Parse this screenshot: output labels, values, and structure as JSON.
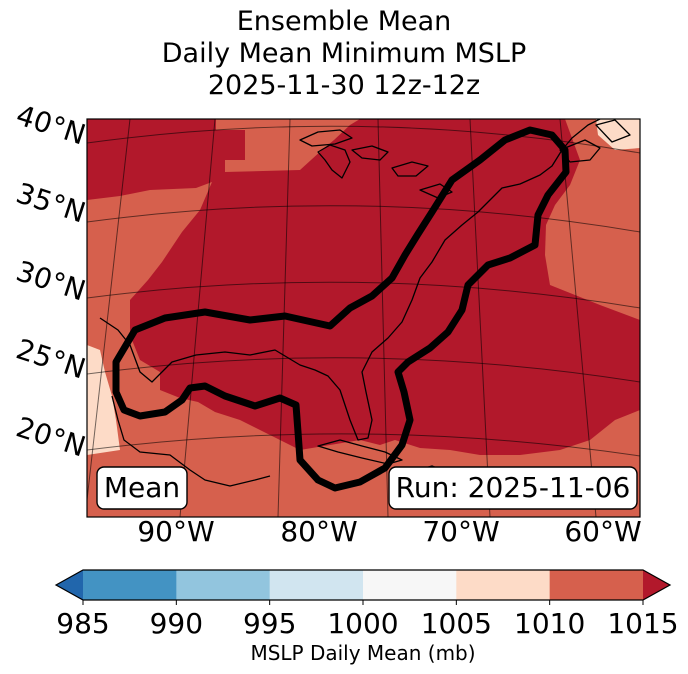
{
  "title": {
    "line1": "Ensemble Mean",
    "line2": "Daily Mean Minimum MSLP",
    "line3": "2025-11-30 12z-12z"
  },
  "map": {
    "lat_labels": [
      "40°N",
      "35°N",
      "30°N",
      "25°N",
      "20°N"
    ],
    "lon_labels": [
      "90°W",
      "80°W",
      "70°W",
      "60°W"
    ],
    "left_box": "Mean",
    "right_box": "Run: 2025-11-06",
    "fill_colors": {
      "band_1005_1010": "#fddbc7",
      "band_1010_1015": "#d6604d",
      "band_above_1015": "#b2182b"
    },
    "contour_color": "#000000"
  },
  "colorbar": {
    "label": "MSLP Daily Mean (mb)",
    "ticks": [
      "985",
      "990",
      "995",
      "1000",
      "1005",
      "1010",
      "1015"
    ],
    "segments": [
      {
        "range": "<985",
        "color": "#2166ac"
      },
      {
        "range": "985-990",
        "color": "#4393c3"
      },
      {
        "range": "990-995",
        "color": "#92c5de"
      },
      {
        "range": "995-1000",
        "color": "#d1e5f0"
      },
      {
        "range": "1000-1005",
        "color": "#f7f7f7"
      },
      {
        "range": "1005-1010",
        "color": "#fddbc7"
      },
      {
        "range": "1010-1015",
        "color": "#d6604d"
      },
      {
        "range": ">1015",
        "color": "#b2182b"
      }
    ]
  }
}
